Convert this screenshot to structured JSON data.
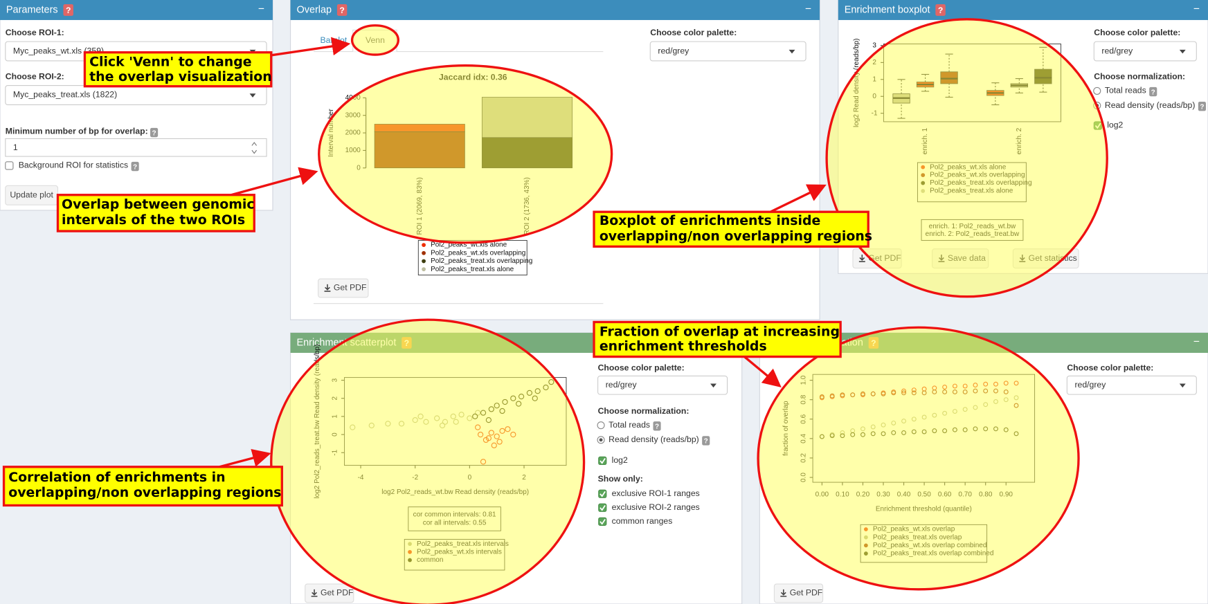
{
  "help_icon": "?",
  "collapse_icon": "−",
  "parameters": {
    "title": "Parameters",
    "roi1_label": "Choose ROI-1:",
    "roi1_value": "Myc_peaks_wt.xls (359)",
    "roi2_label": "Choose ROI-2:",
    "roi2_value": "Myc_peaks_treat.xls (1822)",
    "minbp_label": "Minimum number of bp for overlap:",
    "minbp_value": "1",
    "background_label": "Background ROI for statistics",
    "update_button": "Update plot"
  },
  "overlap": {
    "title": "Overlap",
    "tabs": [
      "Barplot",
      "Venn"
    ],
    "palette_label": "Choose color palette:",
    "palette_value": "red/grey",
    "pdf_button": "Get PDF",
    "chart_data": {
      "type": "bar",
      "title": "Jaccard idx: 0.36",
      "y_label": "Interval number",
      "categories": [
        "ROI 1 (2069, 83%)",
        "ROI 2 (1736, 43%)"
      ],
      "ylim": [
        0,
        4000
      ],
      "yticks": [
        0,
        1000,
        2000,
        3000,
        4000
      ],
      "series": [
        {
          "name": "Pol2_peaks_wt.xls alone",
          "color": "#ee2c00",
          "values": [
            430,
            null
          ]
        },
        {
          "name": "Pol2_peaks_wt.xls overlapping",
          "color": "#a03000",
          "values": [
            2069,
            null
          ]
        },
        {
          "name": "Pol2_peaks_treat.xls overlapping",
          "color": "#3d3d10",
          "values": [
            null,
            1736
          ]
        },
        {
          "name": "Pol2_peaks_treat.xls alone",
          "color": "#bdbda0",
          "values": [
            null,
            2300
          ]
        }
      ]
    }
  },
  "boxplot": {
    "title": "Enrichment boxplot",
    "palette_label": "Choose color palette:",
    "palette_value": "red/grey",
    "normalization_label": "Choose normalization:",
    "normalization_options": [
      "Total reads",
      "Read density (reads/bp)"
    ],
    "log2_label": "log2",
    "buttons": [
      "Get PDF",
      "Save data",
      "Get statistics"
    ],
    "chart_data": {
      "type": "box",
      "y_label": "log2 Read density (reads/bp)",
      "categories": [
        "enrich. 1",
        "enrich. 2"
      ],
      "ylim": [
        -1.5,
        3.1
      ],
      "yticks": [
        -1,
        0,
        1,
        2,
        3
      ],
      "series": [
        {
          "name": "Pol2_peaks_wt.xls alone",
          "color": "#ee2c00",
          "boxes": [
            [
              0.3,
              0.55,
              0.7,
              0.85,
              1.3
            ],
            [
              -0.5,
              0.05,
              0.2,
              0.35,
              0.8
            ]
          ]
        },
        {
          "name": "Pol2_peaks_wt.xls overlapping",
          "color": "#a03000",
          "boxes": [
            [
              -0.05,
              0.75,
              1.05,
              1.45,
              2.5
            ],
            null
          ]
        },
        {
          "name": "Pol2_peaks_treat.xls overlapping",
          "color": "#3d3d10",
          "boxes": [
            null,
            [
              0.25,
              0.75,
              1.1,
              1.6,
              2.9
            ]
          ]
        },
        {
          "name": "Pol2_peaks_treat.xls alone",
          "color": "#bdbda0",
          "boxes": [
            [
              -1.3,
              -0.4,
              -0.1,
              0.15,
              1.0
            ],
            [
              0.2,
              0.55,
              0.65,
              0.75,
              1.05
            ]
          ]
        }
      ],
      "notes": [
        "enrich. 1: Pol2_reads_wt.bw",
        "enrich. 2: Pol2_reads_treat.bw"
      ]
    }
  },
  "scatter": {
    "title": "Enrichment scatterplot",
    "palette_label": "Choose color palette:",
    "palette_value": "red/grey",
    "normalization_label": "Choose normalization:",
    "normalization_options": [
      "Total reads",
      "Read density (reads/bp)"
    ],
    "log2_label": "log2",
    "show_only_label": "Show only:",
    "show_only_options": [
      "exclusive ROI-1 ranges",
      "exclusive ROI-2 ranges",
      "common ranges"
    ],
    "pdf_button": "Get PDF",
    "chart_data": {
      "type": "scatter",
      "x_label": "log2 Pol2_reads_wt.bw Read density (reads/bp)",
      "y_label": "log2 Pol2_reads_treat.bw Read density (reads/bp)",
      "xlim": [
        -4.6,
        3.55
      ],
      "ylim": [
        -1.7,
        3.15
      ],
      "xticks": [
        -4,
        -2,
        0,
        2
      ],
      "yticks": [
        -1,
        0,
        1,
        2,
        3
      ],
      "series": [
        {
          "name": "Pol2_peaks_treat.xls intervals",
          "color": "#b5b58a",
          "x": [
            -4.3,
            -3.6,
            -3.0,
            -2.5,
            -2.0,
            -1.6,
            -1.2,
            -0.9,
            -0.6,
            -0.3,
            0.0,
            0.3,
            -1.8,
            -1.0,
            -0.5
          ],
          "y": [
            0.4,
            0.5,
            0.6,
            0.6,
            0.8,
            0.7,
            0.9,
            0.7,
            1.0,
            1.1,
            0.9,
            1.2,
            1.0,
            0.5,
            0.7
          ]
        },
        {
          "name": "Pol2_peaks_wt.xls intervals",
          "color": "#ee2c00",
          "x": [
            0.4,
            0.6,
            0.8,
            1.0,
            1.2,
            0.5,
            0.9,
            1.4,
            0.7,
            0.3,
            1.1,
            1.6
          ],
          "y": [
            0.0,
            -0.3,
            0.1,
            -0.1,
            0.2,
            -1.5,
            -0.6,
            0.3,
            -0.2,
            0.4,
            -0.4,
            0.0
          ]
        },
        {
          "name": "common",
          "color": "#2e2e08",
          "x": [
            0.2,
            0.5,
            0.8,
            1.0,
            1.3,
            1.6,
            1.9,
            2.2,
            2.5,
            2.8,
            3.0,
            0.7,
            1.2,
            1.8,
            2.4
          ],
          "y": [
            1.0,
            1.2,
            1.4,
            1.6,
            1.8,
            2.0,
            2.1,
            2.3,
            2.4,
            2.6,
            2.9,
            0.8,
            1.3,
            1.7,
            2.0
          ]
        }
      ],
      "notes": [
        "cor common intervals: 0.81",
        "cor all intervals: 0.55"
      ]
    }
  },
  "saturation": {
    "title": "Enrichment saturation",
    "palette_label": "Choose color palette:",
    "palette_value": "red/grey",
    "pdf_button": "Get PDF",
    "chart_data": {
      "type": "scatter",
      "x_label": "Enrichment threshold (quantile)",
      "y_label": "fraction of overlap",
      "xlim": [
        -0.045,
        1.04
      ],
      "ylim": [
        -0.05,
        1.06
      ],
      "xticks": [
        {
          "value": 0,
          "label": "0.00"
        },
        {
          "value": 0.1,
          "label": "0.10"
        },
        {
          "value": 0.2,
          "label": "0.20"
        },
        {
          "value": 0.3,
          "label": "0.30"
        },
        {
          "value": 0.4,
          "label": "0.40"
        },
        {
          "value": 0.5,
          "label": "0.50"
        },
        {
          "value": 0.6,
          "label": "0.60"
        },
        {
          "value": 0.7,
          "label": "0.70"
        },
        {
          "value": 0.8,
          "label": "0.80"
        },
        {
          "value": 0.9,
          "label": "0.90"
        }
      ],
      "yticks": [
        {
          "value": 0,
          "label": "0.0"
        },
        {
          "value": 0.2,
          "label": "0.2"
        },
        {
          "value": 0.4,
          "label": "0.4"
        },
        {
          "value": 0.6,
          "label": "0.6"
        },
        {
          "value": 0.8,
          "label": "0.8"
        },
        {
          "value": 1,
          "label": "1.0"
        }
      ],
      "x": [
        0,
        0.05,
        0.1,
        0.15,
        0.2,
        0.25,
        0.3,
        0.35,
        0.4,
        0.45,
        0.5,
        0.55,
        0.6,
        0.65,
        0.7,
        0.75,
        0.8,
        0.85,
        0.9,
        0.95
      ],
      "series": [
        {
          "name": "Pol2_peaks_wt.xls overlap",
          "color": "#ee2c00",
          "values": [
            0.82,
            0.83,
            0.84,
            0.85,
            0.85,
            0.86,
            0.87,
            0.88,
            0.89,
            0.9,
            0.91,
            0.92,
            0.93,
            0.94,
            0.94,
            0.95,
            0.96,
            0.96,
            0.97,
            0.97
          ]
        },
        {
          "name": "Pol2_peaks_treat.xls overlap",
          "color": "#b5b58a",
          "values": [
            0.42,
            0.44,
            0.46,
            0.48,
            0.5,
            0.52,
            0.54,
            0.56,
            0.58,
            0.6,
            0.62,
            0.64,
            0.66,
            0.68,
            0.7,
            0.72,
            0.75,
            0.78,
            0.8,
            0.82
          ]
        },
        {
          "name": "Pol2_peaks_wt.xls overlap combined",
          "color": "#a03000",
          "values": [
            0.83,
            0.84,
            0.85,
            0.85,
            0.86,
            0.86,
            0.86,
            0.87,
            0.87,
            0.87,
            0.87,
            0.88,
            0.88,
            0.88,
            0.88,
            0.89,
            0.89,
            0.89,
            0.88,
            0.74
          ]
        },
        {
          "name": "Pol2_peaks_treat.xls overlap combined",
          "color": "#3d3d10",
          "values": [
            0.42,
            0.43,
            0.43,
            0.44,
            0.44,
            0.45,
            0.45,
            0.46,
            0.46,
            0.47,
            0.47,
            0.48,
            0.48,
            0.49,
            0.49,
            0.5,
            0.5,
            0.5,
            0.49,
            0.45
          ]
        }
      ]
    }
  },
  "callouts": [
    {
      "lines": [
        "Click 'Venn' to change",
        "the overlap visualization"
      ]
    },
    {
      "lines": [
        "Overlap between genomic",
        "intervals of the two ROIs"
      ]
    },
    {
      "lines": [
        "Boxplot of enrichments inside",
        "overlapping/non overlapping regions"
      ]
    },
    {
      "lines": [
        "Fraction of overlap at increasing",
        "enrichment thresholds"
      ]
    },
    {
      "lines": [
        "Correlation of enrichments in",
        "overlapping/non overlapping regions"
      ]
    }
  ]
}
